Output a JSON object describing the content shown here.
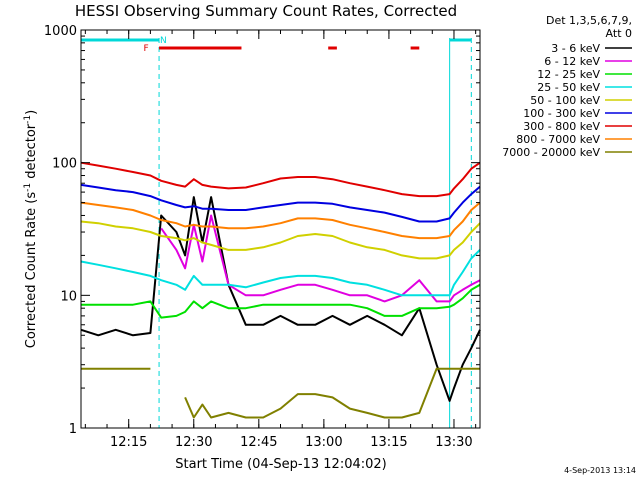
{
  "chart_data": {
    "type": "line",
    "title": "HESSI Observing Summary Count Rates, Corrected",
    "xlabel": "Start Time (04-Sep-13 12:04:02)",
    "ylabel_main": "Corrected Count Rate (s",
    "ylabel_sup1": "-1",
    "ylabel_mid": " detector",
    "ylabel_sup2": "-1",
    "ylabel_end": ")",
    "y_scale": "log",
    "ylim": [
      1,
      1000
    ],
    "xlim_minutes": [
      0,
      92
    ],
    "x_ticks": [
      {
        "t": 11,
        "label": "12:15"
      },
      {
        "t": 26,
        "label": "12:30"
      },
      {
        "t": 41,
        "label": "12:45"
      },
      {
        "t": 56,
        "label": "13:00"
      },
      {
        "t": 71,
        "label": "13:15"
      },
      {
        "t": 86,
        "label": "13:30"
      }
    ],
    "x_minor_step_minutes": 5,
    "y_ticks": [
      {
        "v": 1,
        "label": "1"
      },
      {
        "v": 10,
        "label": "10"
      },
      {
        "v": 100,
        "label": "100"
      },
      {
        "v": 1000,
        "label": "1000"
      }
    ],
    "legend_header": [
      "Det 1,3,5,6,7,9,",
      "Att 0"
    ],
    "legend_position": "right",
    "stamp": "4-Sep-2013 13:14",
    "night_intervals": [
      [
        0,
        18
      ],
      [
        85,
        90
      ]
    ],
    "flags": [
      {
        "label": "N",
        "t": 19,
        "color": "#00d8d8"
      },
      {
        "label": "F",
        "t": 15,
        "color": "#e00000"
      }
    ],
    "flare_bars": [
      [
        18,
        37
      ],
      [
        57,
        59
      ],
      [
        76,
        78
      ]
    ],
    "x": [
      0,
      4,
      8,
      12,
      16,
      18.5,
      22,
      24,
      26,
      28,
      30,
      34,
      38,
      42,
      46,
      50,
      54,
      58,
      62,
      66,
      70,
      74,
      78,
      82,
      85,
      86,
      88,
      90,
      92
    ],
    "series": [
      {
        "name": "3 - 6 keV",
        "color": "#000000",
        "values": [
          5.5,
          5,
          5.5,
          5,
          5.2,
          40,
          30,
          20,
          55,
          25,
          55,
          12,
          6,
          6,
          7,
          6,
          6,
          7,
          6,
          7,
          6,
          5,
          8,
          3,
          1.6,
          2,
          3,
          4,
          5.5
        ]
      },
      {
        "name": "6 - 12 keV",
        "color": "#e000e0",
        "values": [
          null,
          null,
          null,
          null,
          null,
          32,
          22,
          16,
          34,
          18,
          40,
          12,
          10,
          10,
          11,
          12,
          12,
          11,
          10,
          10,
          9,
          10,
          13,
          9,
          9,
          10,
          11,
          12,
          13
        ]
      },
      {
        "name": "12 - 25 keV",
        "color": "#00e000",
        "values": [
          8.5,
          8.5,
          8.5,
          8.5,
          9,
          6.8,
          7,
          7.5,
          9,
          8,
          9,
          8,
          8,
          8.5,
          8.5,
          8.5,
          8.5,
          8.5,
          8.5,
          8,
          7,
          7,
          8,
          8,
          8.2,
          8.5,
          9.5,
          11,
          12
        ]
      },
      {
        "name": "25 - 50 keV",
        "color": "#00e0e0",
        "values": [
          18,
          17,
          16,
          15,
          14,
          13,
          12,
          11,
          14,
          12,
          12,
          12,
          11.5,
          12.5,
          13.5,
          14,
          14,
          13.5,
          12.5,
          12,
          11,
          10,
          10,
          10,
          10,
          12,
          15,
          19,
          22
        ]
      },
      {
        "name": "50 - 100 keV",
        "color": "#d0d000",
        "values": [
          36,
          35,
          33,
          32,
          30,
          28,
          27,
          26,
          27,
          25,
          24,
          22,
          22,
          23,
          25,
          28,
          29,
          28,
          25,
          23,
          22,
          20,
          19,
          19,
          20,
          22,
          25,
          30,
          35
        ]
      },
      {
        "name": "100 - 300 keV",
        "color": "#0000e0",
        "values": [
          68,
          65,
          62,
          60,
          56,
          52,
          48,
          46,
          47,
          45,
          45,
          44,
          44,
          46,
          48,
          50,
          50,
          49,
          46,
          44,
          42,
          39,
          36,
          36,
          38,
          42,
          50,
          58,
          66
        ]
      },
      {
        "name": "300 - 800 keV",
        "color": "#e00000",
        "values": [
          100,
          95,
          90,
          85,
          80,
          73,
          68,
          66,
          75,
          68,
          66,
          64,
          65,
          70,
          76,
          78,
          78,
          75,
          70,
          66,
          62,
          58,
          56,
          56,
          58,
          64,
          75,
          90,
          100
        ]
      },
      {
        "name": "800 - 7000 keV",
        "color": "#ff8000",
        "values": [
          50,
          48,
          46,
          44,
          40,
          37,
          35,
          33,
          34,
          33,
          33,
          32,
          32,
          33,
          35,
          38,
          38,
          37,
          34,
          32,
          30,
          28,
          27,
          27,
          28,
          31,
          36,
          44,
          50
        ]
      },
      {
        "name": "7000 - 20000 keV",
        "color": "#808000",
        "values": [
          2.8,
          2.8,
          2.8,
          2.8,
          2.8,
          null,
          null,
          1.7,
          1.2,
          1.5,
          1.2,
          1.3,
          1.2,
          1.2,
          1.4,
          1.8,
          1.8,
          1.7,
          1.4,
          1.3,
          1.2,
          1.2,
          1.3,
          2.8,
          2.8,
          2.8,
          2.8,
          2.8,
          2.8
        ]
      }
    ]
  }
}
